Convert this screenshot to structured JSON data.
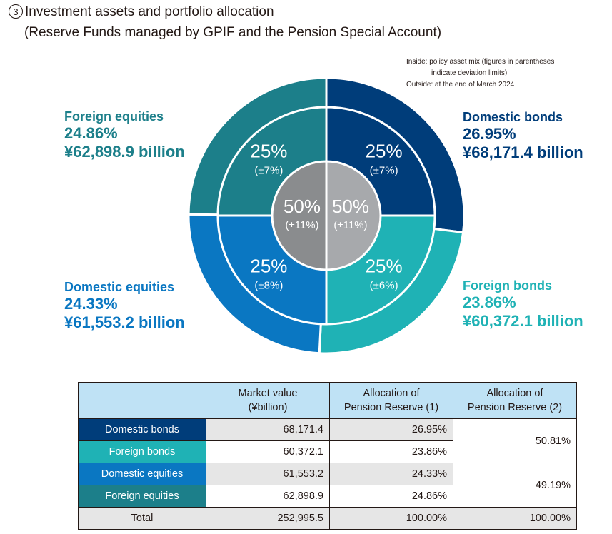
{
  "header": {
    "number": "3",
    "title": "Investment assets and portfolio allocation",
    "subtitle": "(Reserve Funds managed by GPIF and the Pension Special Account)"
  },
  "notes": {
    "line1": "Inside: policy asset mix (figures in parentheses",
    "line2": "indicate deviation limits)",
    "line3": "Outside: at the end of March 2024"
  },
  "chart_data": {
    "type": "pie",
    "outer_ring": [
      {
        "name": "Domestic bonds",
        "percent_label": "26.95%",
        "percent": 26.95,
        "amount": "¥68,171.4 billion",
        "color": "#003d7a"
      },
      {
        "name": "Foreign bonds",
        "percent_label": "23.86%",
        "percent": 23.86,
        "amount": "¥60,372.1 billion",
        "color": "#1fb2b5"
      },
      {
        "name": "Domestic equities",
        "percent_label": "24.33%",
        "percent": 24.33,
        "amount": "¥61,553.2 billion",
        "color": "#0a77c2"
      },
      {
        "name": "Foreign equities",
        "percent_label": "24.86%",
        "percent": 24.86,
        "amount": "¥62,898.9 billion",
        "color": "#1c7f8a"
      }
    ],
    "inner_ring": [
      {
        "label": "25%",
        "limit": "(±7%)",
        "value": 25
      },
      {
        "label": "25%",
        "limit": "(±6%)",
        "value": 25
      },
      {
        "label": "25%",
        "limit": "(±8%)",
        "value": 25
      },
      {
        "label": "25%",
        "limit": "(±7%)",
        "value": 25
      }
    ],
    "center": [
      {
        "label": "50%",
        "limit": "(±11%)",
        "value": 50,
        "color": "#a7a9ac"
      },
      {
        "label": "50%",
        "limit": "(±11%)",
        "value": 50,
        "color": "#8a8c8e"
      }
    ]
  },
  "table": {
    "headers": [
      "Market value\n(¥billion)",
      "Allocation of\nPension Reserve (1)",
      "Allocation of\nPension Reserve (2)"
    ],
    "rows": [
      {
        "label": "Domestic bonds",
        "color": "#003d7a",
        "value": "68,171.4",
        "alloc1": "26.95%"
      },
      {
        "label": "Foreign bonds",
        "color": "#1fb2b5",
        "value": "60,372.1",
        "alloc1": "23.86%"
      },
      {
        "label": "Domestic equities",
        "color": "#0a77c2",
        "value": "61,553.2",
        "alloc1": "24.33%"
      },
      {
        "label": "Foreign equities",
        "color": "#1c7f8a",
        "value": "62,898.9",
        "alloc1": "24.86%"
      }
    ],
    "merged": [
      "50.81%",
      "49.19%"
    ],
    "total": {
      "label": "Total",
      "value": "252,995.5",
      "alloc1": "100.00%",
      "alloc2": "100.00%"
    }
  }
}
